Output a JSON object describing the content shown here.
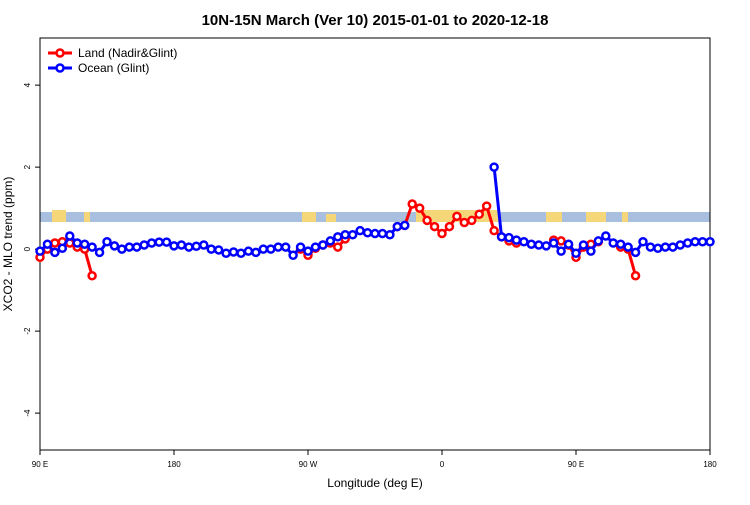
{
  "chart_data": {
    "type": "line",
    "title": "10N-15N March (Ver 10)   2015-01-01 to 2020-12-18",
    "x_label": "Longitude (deg E)",
    "y_label": "XCO2 - MLO trend (ppm)",
    "x": [
      90,
      95,
      100,
      105,
      110,
      115,
      120,
      125,
      130,
      135,
      140,
      145,
      150,
      155,
      160,
      165,
      170,
      175,
      180,
      185,
      190,
      195,
      200,
      205,
      210,
      215,
      220,
      225,
      230,
      235,
      240,
      245,
      250,
      255,
      260,
      265,
      270,
      275,
      280,
      285,
      290,
      295,
      300,
      305,
      310,
      315,
      320,
      325,
      330,
      335,
      340,
      345,
      350,
      355,
      360,
      365,
      370,
      375,
      380,
      385,
      390,
      395,
      400,
      405,
      410,
      415,
      420,
      425,
      430,
      435,
      440,
      445,
      450,
      455,
      460,
      465,
      470,
      475,
      480,
      485,
      490,
      495,
      500,
      505,
      510,
      515,
      520,
      525,
      530,
      535,
      540
    ],
    "xlim": [
      90,
      540
    ],
    "xticks": [
      {
        "value": 90,
        "label": "90 E"
      },
      180,
      {
        "value": 270,
        "label": "90 W"
      },
      {
        "value": 360,
        "label": "0"
      },
      {
        "value": 450,
        "label": "90 E"
      },
      {
        "value": 540,
        "label": "180"
      }
    ],
    "ylim": [
      -4.9,
      5.15
    ],
    "yticks": [
      -4,
      -2,
      0,
      2,
      4
    ],
    "legend": "top-left",
    "series": [
      {
        "name": "Land (Nadir&Glint)",
        "color": "#ff0000",
        "values": [
          -0.2,
          0.0,
          0.15,
          0.18,
          0.15,
          0.05,
          0.0,
          -0.65,
          null,
          null,
          null,
          null,
          null,
          null,
          null,
          null,
          null,
          null,
          null,
          null,
          null,
          null,
          null,
          null,
          null,
          null,
          null,
          null,
          null,
          null,
          null,
          null,
          null,
          null,
          null,
          0.0,
          -0.15,
          0.02,
          0.1,
          0.15,
          0.05,
          0.25,
          null,
          null,
          null,
          null,
          null,
          null,
          0.55,
          0.58,
          1.1,
          1.0,
          0.7,
          0.55,
          0.38,
          0.55,
          0.8,
          0.65,
          0.7,
          0.85,
          1.05,
          0.45,
          0.3,
          0.2,
          0.15,
          null,
          null,
          null,
          null,
          0.22,
          0.2,
          0.1,
          -0.2,
          0.05,
          0.12,
          0.18,
          null,
          null,
          0.05,
          0.0,
          -0.65,
          null,
          null,
          null,
          null,
          null,
          null,
          null,
          null,
          null,
          null
        ]
      },
      {
        "name": "Ocean (Glint)",
        "color": "#0000ff",
        "values": [
          -0.05,
          0.12,
          -0.08,
          0.02,
          0.32,
          0.15,
          0.12,
          0.05,
          -0.08,
          0.18,
          0.08,
          0.0,
          0.05,
          0.05,
          0.1,
          0.15,
          0.17,
          0.17,
          0.08,
          0.1,
          0.05,
          0.07,
          0.1,
          0.0,
          -0.02,
          -0.1,
          -0.07,
          -0.1,
          -0.05,
          -0.08,
          0.0,
          0.0,
          0.05,
          0.05,
          -0.15,
          0.05,
          -0.05,
          0.05,
          0.1,
          0.2,
          0.3,
          0.35,
          0.35,
          0.45,
          0.4,
          0.38,
          0.38,
          0.35,
          0.55,
          0.58,
          null,
          null,
          null,
          null,
          null,
          null,
          null,
          null,
          null,
          null,
          null,
          2.0,
          0.3,
          0.28,
          0.22,
          0.18,
          0.12,
          0.1,
          0.08,
          0.15,
          -0.05,
          0.12,
          -0.1,
          0.1,
          -0.05,
          0.2,
          0.32,
          0.15,
          0.12,
          0.05,
          -0.08,
          0.18,
          0.05,
          0.02,
          0.05,
          0.05,
          0.1,
          0.15,
          0.18,
          0.18,
          0.18
        ]
      }
    ]
  }
}
